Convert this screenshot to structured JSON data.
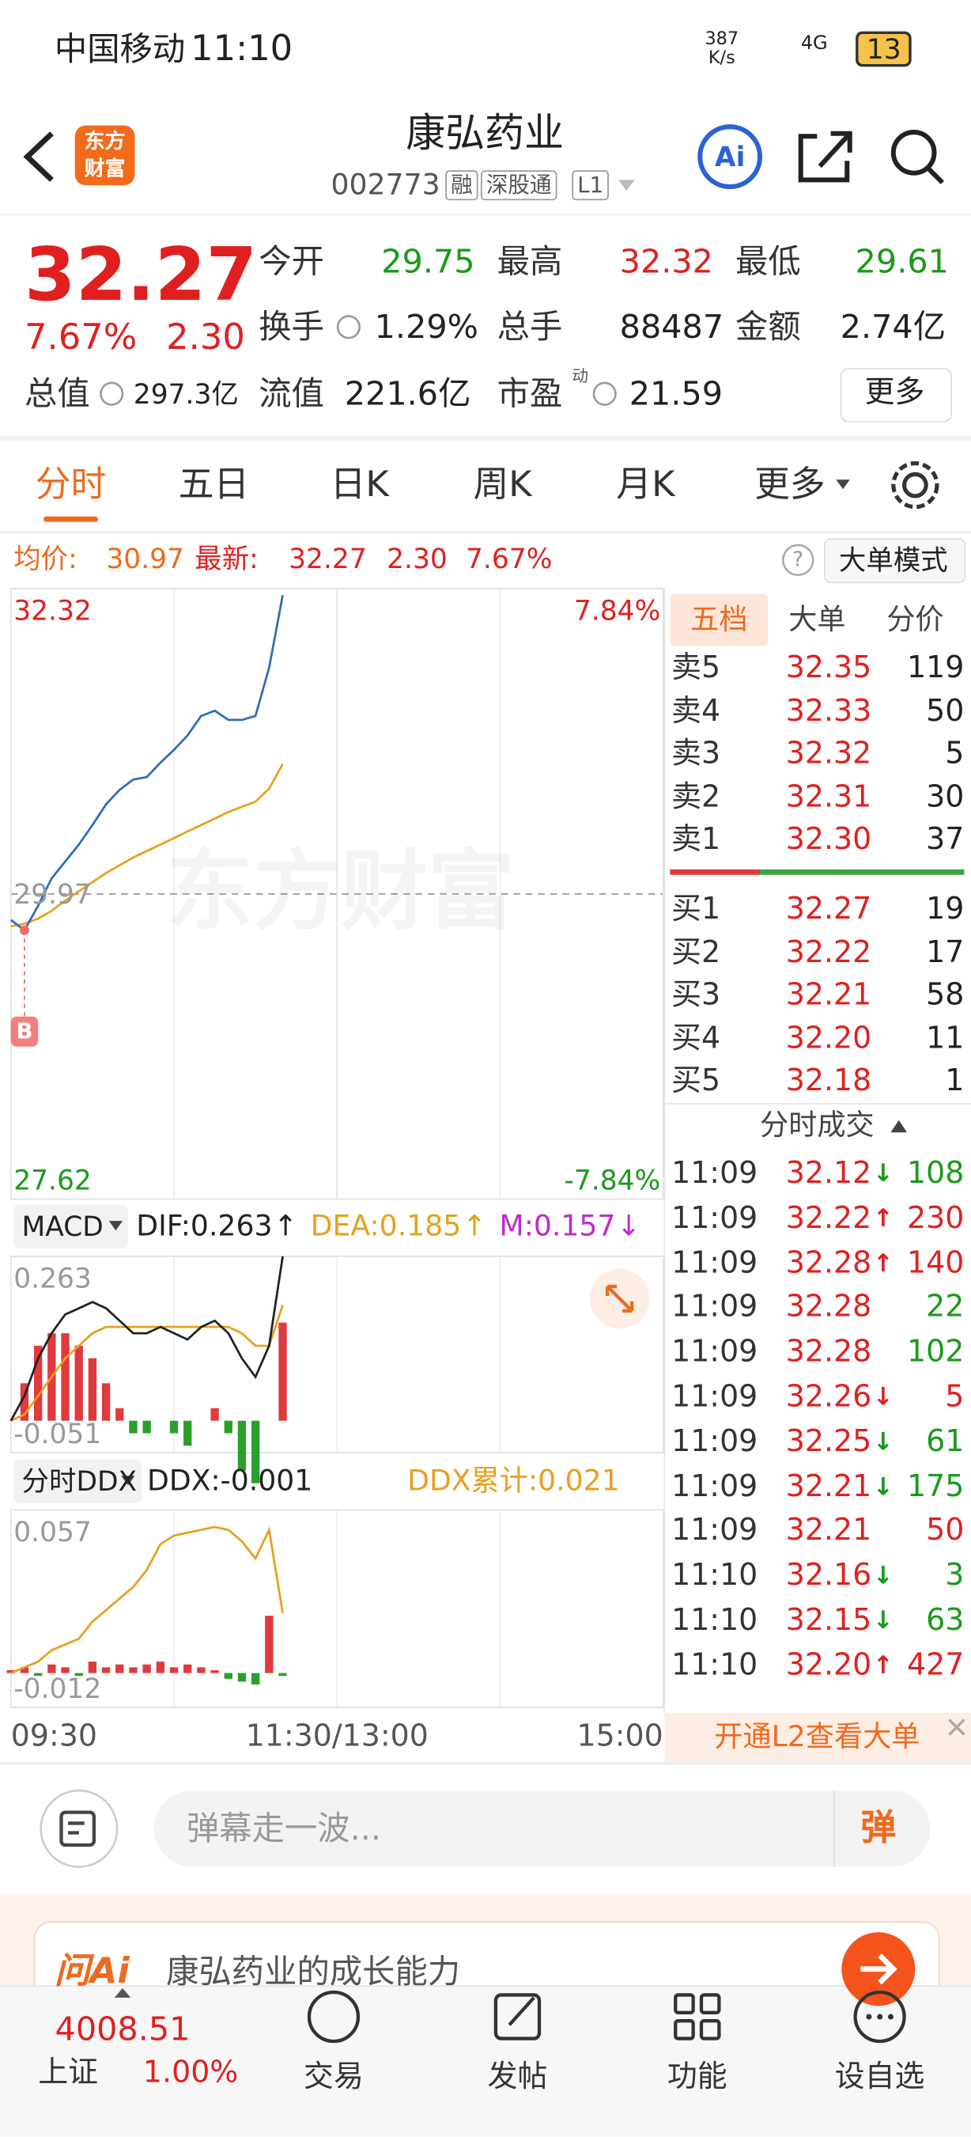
{
  "status_bar": {
    "carrier": "中国移动",
    "time": "11:10",
    "net_speed": "387",
    "net_unit": "K/s",
    "network": "4G",
    "battery": "13"
  },
  "header": {
    "logo_lines": [
      "东方",
      "财富"
    ],
    "title": "康弘药业",
    "code": "002773",
    "tags": [
      "融",
      "深股通",
      "L1"
    ],
    "ai": "Ai"
  },
  "quote": {
    "price": "32.27",
    "change_pct": "7.67%",
    "change": "2.30",
    "stats": [
      {
        "label": "今开",
        "value": "29.75"
      },
      {
        "label": "最高",
        "value": "32.32"
      },
      {
        "label": "最低",
        "value": "29.61"
      },
      {
        "label": "换手",
        "value": "1.29%"
      },
      {
        "label": "总手",
        "value": "88487"
      },
      {
        "label": "金额",
        "value": "2.74亿"
      },
      {
        "label": "总值",
        "value": "297.3亿"
      },
      {
        "label": "流值",
        "value": "221.6亿"
      },
      {
        "label": "市盈",
        "value": "21.59",
        "superscript": "动"
      }
    ],
    "more": "更多"
  },
  "tabs": [
    "分时",
    "五日",
    "日K",
    "周K",
    "月K",
    "更多"
  ],
  "info_bar": {
    "avg_label": "均价:",
    "avg": "30.97",
    "latest_label": "最新:",
    "latest": "32.27",
    "change": "2.30",
    "change_pct": "7.67%",
    "help": "?",
    "mode_button": "大单模式"
  },
  "chart_data": [
    {
      "type": "line",
      "watermark": "东方财富",
      "x": [
        0,
        5,
        10,
        15,
        20,
        25,
        30,
        35,
        40,
        45,
        50,
        55,
        60,
        65,
        70,
        75,
        80,
        85,
        90,
        95,
        100
      ],
      "xlim": [
        0,
        240
      ],
      "xticks": [
        {
          "value": 0,
          "label": "09:30"
        },
        {
          "value": 120,
          "label": "11:30/13:00"
        },
        {
          "value": 240,
          "label": "15:00"
        }
      ],
      "ylim": [
        27.62,
        32.32
      ],
      "yticks": [
        32.32,
        29.97,
        27.62
      ],
      "y2lim": [
        -7.84,
        7.84
      ],
      "y2ticks": [
        {
          "value": 7.84,
          "label": "7.84%"
        },
        {
          "value": -7.84,
          "label": "-7.84%"
        }
      ],
      "series": [
        {
          "color": "#2f6db5",
          "values": [
            29.77,
            29.69,
            29.88,
            30.09,
            30.22,
            30.35,
            30.5,
            30.66,
            30.77,
            30.85,
            30.87,
            30.98,
            31.08,
            31.19,
            31.34,
            31.38,
            31.31,
            31.31,
            31.34,
            31.71,
            32.27
          ]
        },
        {
          "color": "#e8a020",
          "values": [
            29.72,
            29.74,
            29.78,
            29.84,
            29.92,
            29.99,
            30.06,
            30.13,
            30.19,
            30.25,
            30.3,
            30.35,
            30.4,
            30.45,
            30.5,
            30.55,
            30.6,
            30.64,
            30.68,
            30.78,
            30.97
          ]
        }
      ],
      "marker": {
        "label": "B",
        "x": 5,
        "y": 29.69
      }
    },
    {
      "type": "macd",
      "selector": "MACD",
      "readouts": [
        {
          "text": "DIF:0.263",
          "arrow": "↑",
          "color": "#222222"
        },
        {
          "text": "DEA:0.185",
          "arrow": "↑",
          "color": "#e8a020"
        },
        {
          "text": "M:0.157",
          "arrow": "↓",
          "color": "#c02ad0"
        }
      ],
      "x": [
        0,
        5,
        10,
        15,
        20,
        25,
        30,
        35,
        40,
        45,
        50,
        55,
        60,
        65,
        70,
        75,
        80,
        85,
        90,
        95,
        100
      ],
      "xlim": [
        0,
        240
      ],
      "ylim": [
        -0.051,
        0.263
      ],
      "yticks": [
        0.263,
        -0.051
      ],
      "series": [
        {
          "color": "#222222",
          "values": [
            0.0,
            0.04,
            0.1,
            0.14,
            0.17,
            0.18,
            0.19,
            0.18,
            0.16,
            0.14,
            0.14,
            0.15,
            0.14,
            0.13,
            0.15,
            0.16,
            0.14,
            0.1,
            0.07,
            0.12,
            0.263
          ]
        },
        {
          "color": "#e8a020",
          "values": [
            0.0,
            0.01,
            0.04,
            0.07,
            0.1,
            0.12,
            0.14,
            0.15,
            0.15,
            0.15,
            0.15,
            0.15,
            0.15,
            0.15,
            0.15,
            0.15,
            0.15,
            0.14,
            0.12,
            0.12,
            0.185
          ]
        }
      ],
      "bars": {
        "up_color": "#e0393e",
        "down_color": "#2aa02a",
        "values": [
          0.0,
          0.06,
          0.12,
          0.14,
          0.14,
          0.12,
          0.1,
          0.06,
          0.02,
          -0.02,
          -0.02,
          0.0,
          -0.02,
          -0.04,
          0.0,
          0.02,
          -0.02,
          -0.08,
          -0.1,
          0.0,
          0.157
        ]
      }
    },
    {
      "type": "ddx",
      "selector": "分时DDX",
      "readouts": [
        {
          "text": "DDX:-0.001",
          "color": "#222222"
        },
        {
          "text": "DDX累计:0.021",
          "color": "#e8a020"
        }
      ],
      "x": [
        0,
        5,
        10,
        15,
        20,
        25,
        30,
        35,
        40,
        45,
        50,
        55,
        60,
        65,
        70,
        75,
        80,
        85,
        90,
        95,
        100
      ],
      "xlim": [
        0,
        240
      ],
      "ylim": [
        -0.012,
        0.057
      ],
      "yticks": [
        0.057,
        -0.012
      ],
      "series": [
        {
          "color": "#e8a020",
          "values": [
            0.0,
            0.002,
            0.004,
            0.008,
            0.01,
            0.012,
            0.018,
            0.022,
            0.026,
            0.03,
            0.036,
            0.045,
            0.048,
            0.049,
            0.05,
            0.051,
            0.05,
            0.046,
            0.04,
            0.05,
            0.021
          ]
        }
      ],
      "bars": {
        "up_color": "#e0393e",
        "down_color": "#2aa02a",
        "values": [
          0.001,
          0.002,
          -0.001,
          0.003,
          0.002,
          -0.001,
          0.004,
          0.002,
          0.003,
          0.002,
          0.003,
          0.004,
          0.002,
          0.003,
          0.002,
          0.001,
          -0.002,
          -0.003,
          -0.004,
          0.02,
          -0.001
        ]
      }
    }
  ],
  "order_book": {
    "tabs": [
      "五档",
      "大单",
      "分价"
    ],
    "asks": [
      {
        "label": "卖5",
        "price": "32.35",
        "volume": "119"
      },
      {
        "label": "卖4",
        "price": "32.33",
        "volume": "50"
      },
      {
        "label": "卖3",
        "price": "32.32",
        "volume": "5"
      },
      {
        "label": "卖2",
        "price": "32.31",
        "volume": "30"
      },
      {
        "label": "卖1",
        "price": "32.30",
        "volume": "37"
      }
    ],
    "bids": [
      {
        "label": "买1",
        "price": "32.27",
        "volume": "19"
      },
      {
        "label": "买2",
        "price": "32.22",
        "volume": "17"
      },
      {
        "label": "买3",
        "price": "32.21",
        "volume": "58"
      },
      {
        "label": "买4",
        "price": "32.20",
        "volume": "11"
      },
      {
        "label": "买5",
        "price": "32.18",
        "volume": "1"
      }
    ],
    "trades_title": "分时成交",
    "trades": [
      {
        "time": "11:09",
        "price": "32.12",
        "arrow": "↓",
        "volume": "108",
        "color": "green"
      },
      {
        "time": "11:09",
        "price": "32.22",
        "arrow": "↑",
        "volume": "230",
        "color": "red"
      },
      {
        "time": "11:09",
        "price": "32.28",
        "arrow": "↑",
        "volume": "140",
        "color": "red"
      },
      {
        "time": "11:09",
        "price": "32.28",
        "volume": "22",
        "color": "green"
      },
      {
        "time": "11:09",
        "price": "32.28",
        "volume": "102",
        "color": "green"
      },
      {
        "time": "11:09",
        "price": "32.26",
        "arrow": "↓",
        "volume": "5",
        "color": "red"
      },
      {
        "time": "11:09",
        "price": "32.25",
        "arrow": "↓",
        "volume": "61",
        "color": "green"
      },
      {
        "time": "11:09",
        "price": "32.21",
        "arrow": "↓",
        "volume": "175",
        "color": "green"
      },
      {
        "time": "11:09",
        "price": "32.21",
        "volume": "50",
        "color": "red"
      },
      {
        "time": "11:10",
        "price": "32.16",
        "arrow": "↓",
        "volume": "3",
        "color": "green"
      },
      {
        "time": "11:10",
        "price": "32.15",
        "arrow": "↓",
        "volume": "63",
        "color": "green"
      },
      {
        "time": "11:10",
        "price": "32.20",
        "arrow": "↑",
        "volume": "427",
        "color": "red"
      }
    ],
    "l2_banner": "开通L2查看大单"
  },
  "comment": {
    "placeholder": "弹幕走一波...",
    "button": "弹"
  },
  "ai_card": {
    "brand": "问Ai",
    "prompt": "康弘药业的成长能力"
  },
  "nav": {
    "index_value": "4008.51",
    "index_name": "上证",
    "index_change": "1.00%",
    "items": [
      "交易",
      "发帖",
      "功能",
      "设自选"
    ]
  }
}
